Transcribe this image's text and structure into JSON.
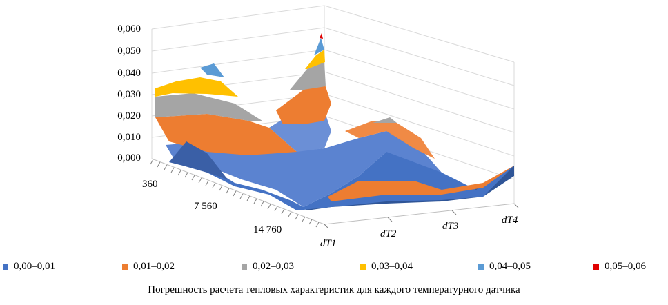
{
  "chart_data": {
    "type": "surface3d",
    "z_ticks": [
      "0,060",
      "0,050",
      "0,040",
      "0,030",
      "0,020",
      "0,010",
      "0,000"
    ],
    "x_ticks": [
      "360",
      "7 560",
      "14 760"
    ],
    "depth_categories": [
      "dT1",
      "dT2",
      "dT3",
      "dT4"
    ],
    "zlim": [
      0,
      0.06
    ],
    "bands": [
      {
        "label": "0,00–0,01",
        "color": "#4472c4"
      },
      {
        "label": "0,01–0,02",
        "color": "#ed7d31"
      },
      {
        "label": "0,02–0,03",
        "color": "#a5a5a5"
      },
      {
        "label": "0,03–0,04",
        "color": "#ffc000"
      },
      {
        "label": "0,04–0,05",
        "color": "#5b9bd5"
      },
      {
        "label": "0,05–0,06",
        "color": "#e00000"
      }
    ],
    "grid": true,
    "legend_position": "bottom"
  },
  "caption": "Погрешность расчета тепловых характеристик для каждого температурного датчика"
}
